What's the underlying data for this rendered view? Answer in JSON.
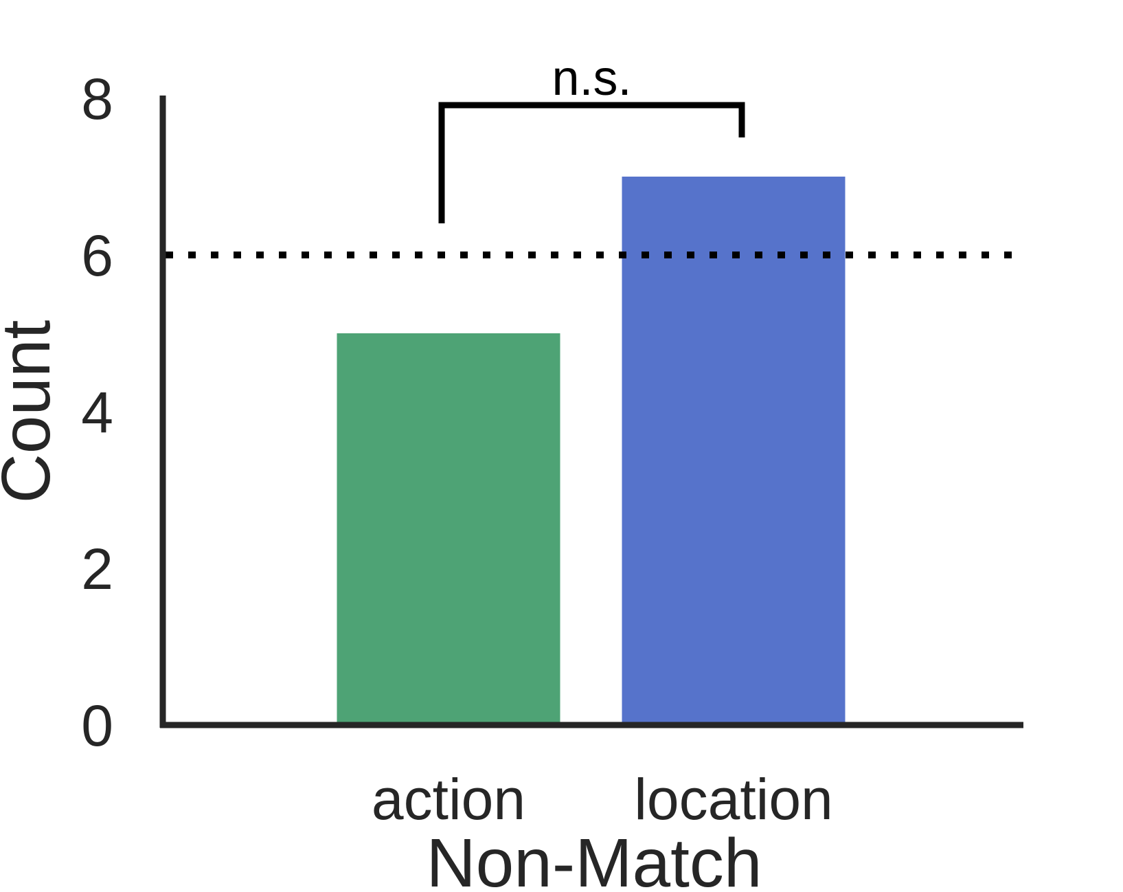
{
  "chart_data": {
    "type": "bar",
    "categories": [
      "action",
      "location"
    ],
    "values": [
      5,
      7
    ],
    "colors": [
      "#4ea375",
      "#5673cb"
    ],
    "xlabel": "Non-Match",
    "ylabel": "Count",
    "ylim": [
      0,
      8
    ],
    "yticks": [
      0,
      2,
      4,
      6,
      8
    ],
    "reference_line": {
      "value": 6,
      "style": "dotted",
      "color": "#000000"
    },
    "significance": {
      "label": "n.s.",
      "between": [
        "action",
        "location"
      ]
    },
    "grid": false,
    "legend": "none"
  }
}
